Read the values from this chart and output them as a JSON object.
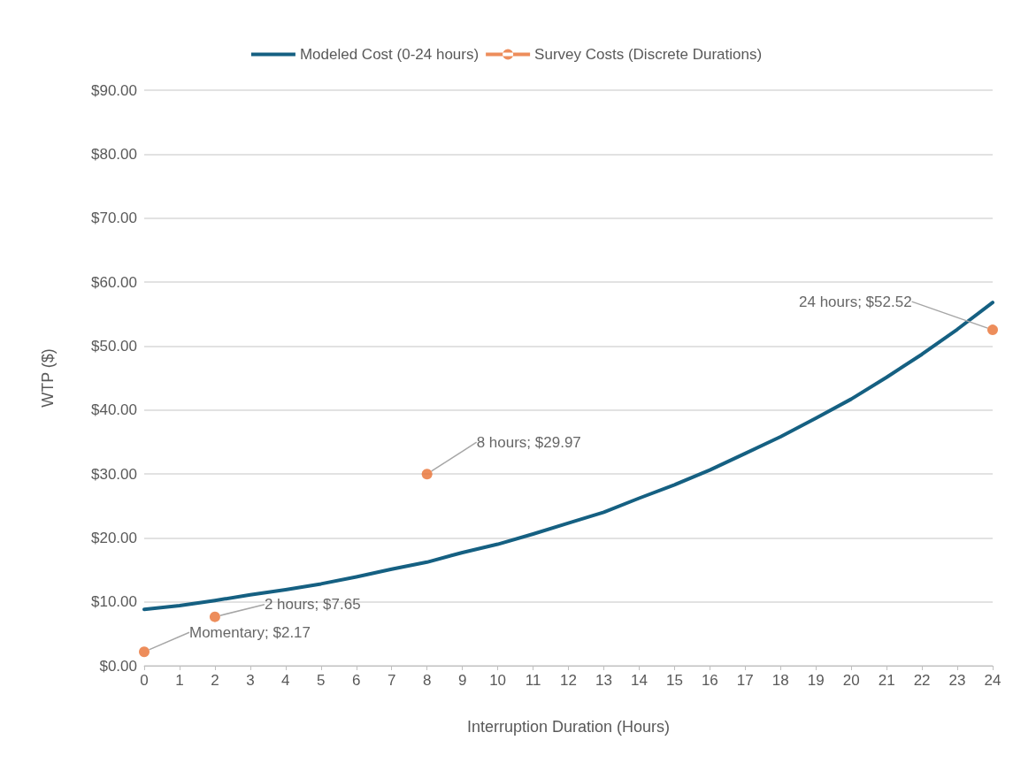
{
  "chart_data": {
    "type": "line",
    "xlabel": "Interruption Duration (Hours)",
    "ylabel": "WTP ($)",
    "xlim": [
      0,
      24
    ],
    "xticks": [
      0,
      1,
      2,
      3,
      4,
      5,
      6,
      7,
      8,
      9,
      10,
      11,
      12,
      13,
      14,
      15,
      16,
      17,
      18,
      19,
      20,
      21,
      22,
      23,
      24
    ],
    "ylim": [
      0,
      90
    ],
    "yticks": [
      {
        "value": 0,
        "label": "$0.00"
      },
      {
        "value": 10,
        "label": "$10.00"
      },
      {
        "value": 20,
        "label": "$20.00"
      },
      {
        "value": 30,
        "label": "$30.00"
      },
      {
        "value": 40,
        "label": "$40.00"
      },
      {
        "value": 50,
        "label": "$50.00"
      },
      {
        "value": 60,
        "label": "$60.00"
      },
      {
        "value": 70,
        "label": "$70.00"
      },
      {
        "value": 80,
        "label": "$80.00"
      },
      {
        "value": 90,
        "label": "$90.00"
      }
    ],
    "grid": "y",
    "legend": "top",
    "series": [
      {
        "name": "Modeled Cost (0-24 hours)",
        "color": "#156082",
        "marker": "none",
        "x": [
          0,
          1,
          2,
          3,
          4,
          5,
          6,
          7,
          8,
          9,
          10,
          11,
          12,
          13,
          14,
          15,
          16,
          17,
          18,
          19,
          20,
          21,
          22,
          23,
          24
        ],
        "values": [
          8.8,
          9.4,
          10.2,
          11.1,
          11.9,
          12.8,
          13.9,
          15.1,
          16.2,
          17.7,
          19.0,
          20.6,
          22.3,
          24.0,
          26.2,
          28.3,
          30.6,
          33.2,
          35.8,
          38.7,
          41.7,
          45.1,
          48.7,
          52.6,
          56.8
        ]
      },
      {
        "name": "Survey Costs (Discrete Durations)",
        "type": "scatter",
        "color": "#e97132",
        "marker": "circle",
        "x": [
          0,
          2,
          8,
          24
        ],
        "values": [
          2.17,
          7.65,
          29.97,
          52.52
        ],
        "value_labels": [
          "Momentary; $2.17",
          "2 hours; $7.65",
          "8 hours; $29.97",
          "24 hours; $52.52"
        ]
      }
    ]
  }
}
